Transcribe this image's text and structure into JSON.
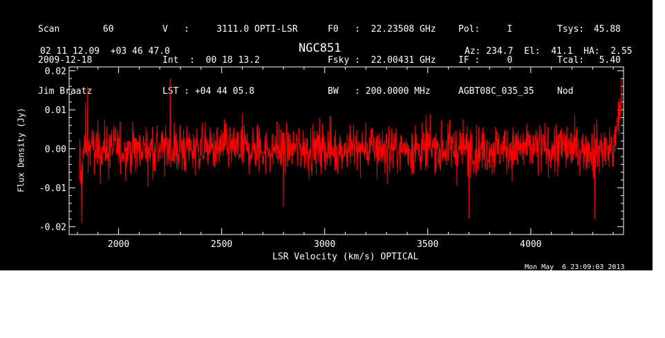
{
  "header": {
    "col1": [
      "Scan        60",
      "2009-12-18",
      "Jim Braatz"
    ],
    "col2": [
      "V   :     3111.0 OPTI-LSR",
      "Int  :  00 18 13.2",
      "LST : +04 44 05.8"
    ],
    "col3": [
      "F0   :  22.23508 GHz",
      "Fsky :  22.00431 GHz",
      "BW   : 200.0000 MHz"
    ],
    "col4": [
      "Pol:     I",
      "IF :     0",
      "AGBT08C_035_35"
    ],
    "col5a": [
      "Tsys:",
      "Tcal:",
      "Nod"
    ],
    "col5b": [
      "45.88",
      "5.40",
      ""
    ],
    "coords": "02 11 12.09  +03 46 47.0",
    "azel": "Az: 234.7  El:  41.1  HA:  2.55",
    "footer": "Mon May  6 23:09:03 2013"
  },
  "chart_data": {
    "type": "line",
    "title": "NGC851",
    "xlabel": "LSR Velocity (km/s) OPTICAL",
    "ylabel": "Flux Density (Jy)",
    "xlim": [
      1760,
      4450
    ],
    "ylim": [
      -0.022,
      0.021
    ],
    "x_ticks": [
      2000,
      2500,
      3000,
      3500,
      4000
    ],
    "x_tick_labels": [
      "2000",
      "2500",
      "3000",
      "3500",
      "4000"
    ],
    "y_ticks": [
      -0.02,
      -0.01,
      0.0,
      0.01,
      0.02
    ],
    "y_tick_labels": [
      "-0.02",
      "-0.01",
      "0.00",
      "0.01",
      "0.02"
    ],
    "series": [
      {
        "color": "#ff0000",
        "x_start": 1810,
        "x_end": 4440,
        "n_points": 1500,
        "baseline": 0.0,
        "noise_rms": 0.004,
        "anchors": [
          {
            "x": 1810,
            "y": -0.008
          },
          {
            "x": 1820,
            "y": -0.019
          },
          {
            "x": 1840,
            "y": 0.012
          },
          {
            "x": 1850,
            "y": 0.016
          },
          {
            "x": 2250,
            "y": 0.018
          },
          {
            "x": 2800,
            "y": -0.015
          },
          {
            "x": 3700,
            "y": -0.018
          },
          {
            "x": 4310,
            "y": -0.018
          },
          {
            "x": 4415,
            "y": 0.004
          },
          {
            "x": 4425,
            "y": 0.012
          },
          {
            "x": 4440,
            "y": 0.018
          }
        ]
      }
    ],
    "grid": false,
    "legend": "none"
  }
}
